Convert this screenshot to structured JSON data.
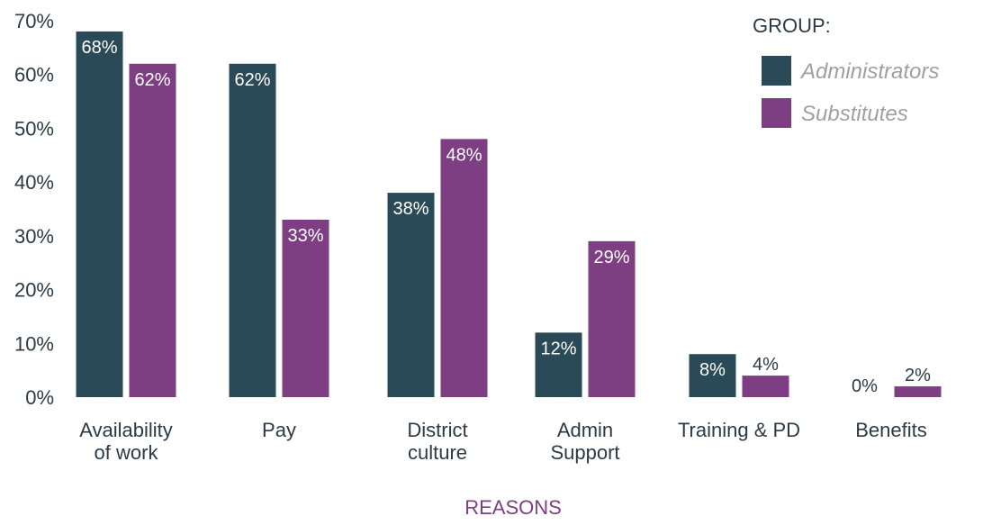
{
  "chart_data": {
    "type": "bar",
    "title": "",
    "xlabel": "REASONS",
    "ylabel": "",
    "ylim": [
      0,
      70
    ],
    "yticks": [
      0,
      10,
      20,
      30,
      40,
      50,
      60,
      70
    ],
    "ytick_suffix": "%",
    "grid": false,
    "categories": [
      [
        "Availability",
        "of work"
      ],
      [
        "Pay"
      ],
      [
        "District",
        "culture"
      ],
      [
        "Admin",
        "Support"
      ],
      [
        "Training & PD"
      ],
      [
        "Benefits"
      ]
    ],
    "series": [
      {
        "name": "Administrators",
        "color": "#2b4a57",
        "values": [
          68,
          62,
          38,
          12,
          8,
          0
        ],
        "labels": [
          "68%",
          "62%",
          "38%",
          "12%",
          "8%",
          "0%"
        ]
      },
      {
        "name": "Substitutes",
        "color": "#7d3f82",
        "values": [
          62,
          33,
          48,
          29,
          4,
          2
        ],
        "labels": [
          "62%",
          "33%",
          "48%",
          "29%",
          "4%",
          "2%"
        ]
      }
    ],
    "legend": {
      "title": "GROUP:",
      "placement": "top-right"
    },
    "colors": {
      "text": "#2b3a45",
      "axis_title": "#7d3f82",
      "legend_text": "#a0a0a0",
      "label_inside": "#ffffff"
    }
  }
}
